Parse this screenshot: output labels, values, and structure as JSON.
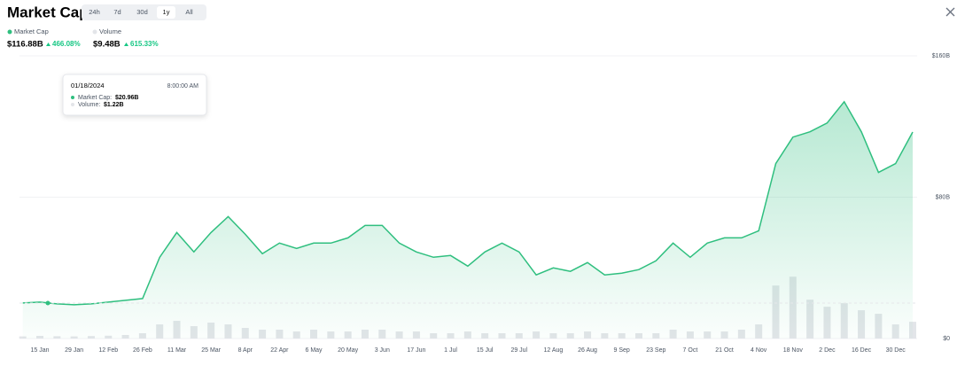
{
  "chart_data": {
    "type": "line",
    "title": "Market Cap",
    "range_buttons": [
      "24h",
      "7d",
      "30d",
      "1y",
      "All"
    ],
    "selected_range": "1y",
    "summary": [
      {
        "value": "$116.88B",
        "change": "466.08%"
      },
      {
        "value": "$9.48B",
        "change": "615.33%"
      }
    ],
    "tooltip": {
      "date": "01/18/2024",
      "time": "8:00:00 AM",
      "rows": [
        {
          "label": "Market Cap:",
          "value": "$20.96B"
        },
        {
          "label": "Volume:",
          "value": "$1.22B"
        }
      ]
    },
    "categories": [
      null,
      "15 Jan",
      null,
      "29 Jan",
      null,
      "12 Feb",
      null,
      "26 Feb",
      null,
      "11 Mar",
      null,
      "25 Mar",
      null,
      "8 Apr",
      null,
      "22 Apr",
      null,
      "6 May",
      null,
      "20 May",
      null,
      "3 Jun",
      null,
      "17 Jun",
      null,
      "1 Jul",
      null,
      "15 Jul",
      null,
      "29 Jul",
      null,
      "12 Aug",
      null,
      "26 Aug",
      null,
      "9 Sep",
      null,
      "23 Sep",
      null,
      "7 Oct",
      null,
      "21 Oct",
      null,
      "4 Nov",
      null,
      "18 Nov",
      null,
      "2 Dec",
      null,
      "16 Dec",
      null,
      "30 Dec",
      null
    ],
    "series": [
      {
        "name": "Market Cap",
        "color": "#2fbf7f",
        "values": [
          20.1,
          20.6,
          19.6,
          19.1,
          19.6,
          20.6,
          21.6,
          22.6,
          46,
          60,
          49,
          60,
          69,
          59,
          48,
          54,
          51,
          54,
          54,
          57,
          64,
          64,
          54,
          49,
          46,
          47,
          41,
          49,
          54,
          49,
          36,
          40,
          38,
          43,
          36,
          37,
          39,
          44,
          54,
          46,
          54,
          57,
          57,
          61,
          99,
          114,
          117,
          122,
          134,
          117,
          94,
          99,
          116.88
        ]
      },
      {
        "name": "Volume",
        "color": "#e3e5e9",
        "values": [
          1.2,
          1.5,
          1.3,
          1.2,
          1.4,
          1.6,
          2,
          3,
          8,
          10,
          7,
          9,
          8,
          6,
          5,
          5,
          4,
          5,
          4,
          4,
          5,
          5,
          4,
          4,
          3,
          3,
          4,
          3,
          3,
          3,
          4,
          3,
          3,
          4,
          3,
          3,
          3,
          3,
          5,
          4,
          4,
          4,
          5,
          8,
          30,
          35,
          22,
          18,
          20,
          16,
          14,
          8,
          9.48
        ]
      }
    ],
    "ylim": [
      0,
      160
    ],
    "yticks": [
      {
        "value": 0,
        "label": "$0"
      },
      {
        "value": 80,
        "label": "$80B"
      },
      {
        "value": 160,
        "label": "$160B"
      }
    ]
  }
}
